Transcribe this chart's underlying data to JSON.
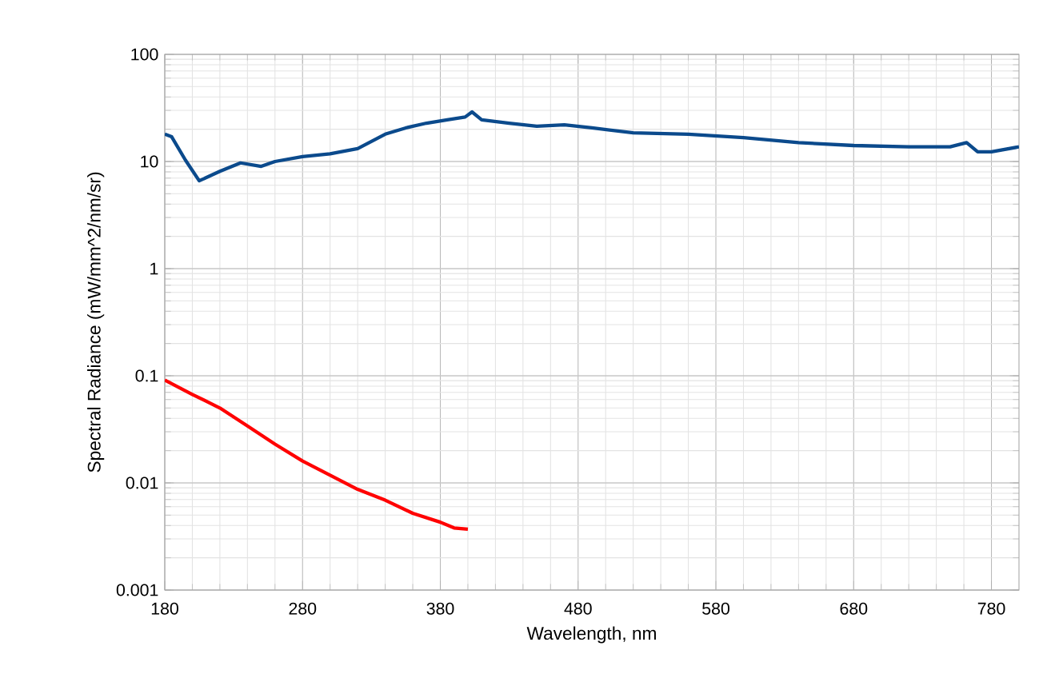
{
  "chart_data": {
    "type": "line",
    "xlabel": "Wavelength, nm",
    "ylabel": "Spectral Radiance  (mW/mm^2/nm/sr)",
    "log": "y",
    "grid": true,
    "marker": "none",
    "line_style": "solid",
    "xlim": [
      180,
      800
    ],
    "xticks": [
      180,
      280,
      380,
      480,
      580,
      680,
      780
    ],
    "ylim": [
      0.001,
      100
    ],
    "yticks": [
      0.001,
      0.01,
      0.1,
      1,
      10,
      100
    ],
    "series": [
      {
        "color": "#0b4a8c",
        "x": [
          180,
          185,
          195,
          205,
          220,
          235,
          250,
          260,
          280,
          300,
          320,
          340,
          355,
          370,
          385,
          398,
          403,
          410,
          430,
          450,
          470,
          490,
          520,
          560,
          600,
          640,
          680,
          720,
          750,
          762,
          770,
          780,
          800
        ],
        "values": [
          18,
          17,
          10.3,
          6.6,
          8.1,
          9.7,
          9,
          10,
          11.1,
          11.8,
          13.2,
          18,
          20.6,
          22.8,
          24.5,
          26,
          29,
          24.5,
          22.8,
          21.3,
          22,
          20.6,
          18.5,
          18,
          16.7,
          15,
          14.1,
          13.7,
          13.7,
          15,
          12.3,
          12.3,
          13.7
        ]
      },
      {
        "color": "#ff0000",
        "x": [
          180,
          200,
          220,
          240,
          260,
          280,
          300,
          320,
          340,
          360,
          380,
          390,
          400
        ],
        "values": [
          0.091,
          0.067,
          0.05,
          0.034,
          0.023,
          0.016,
          0.0118,
          0.0087,
          0.0069,
          0.0052,
          0.0043,
          0.0038,
          0.0037
        ]
      }
    ]
  }
}
